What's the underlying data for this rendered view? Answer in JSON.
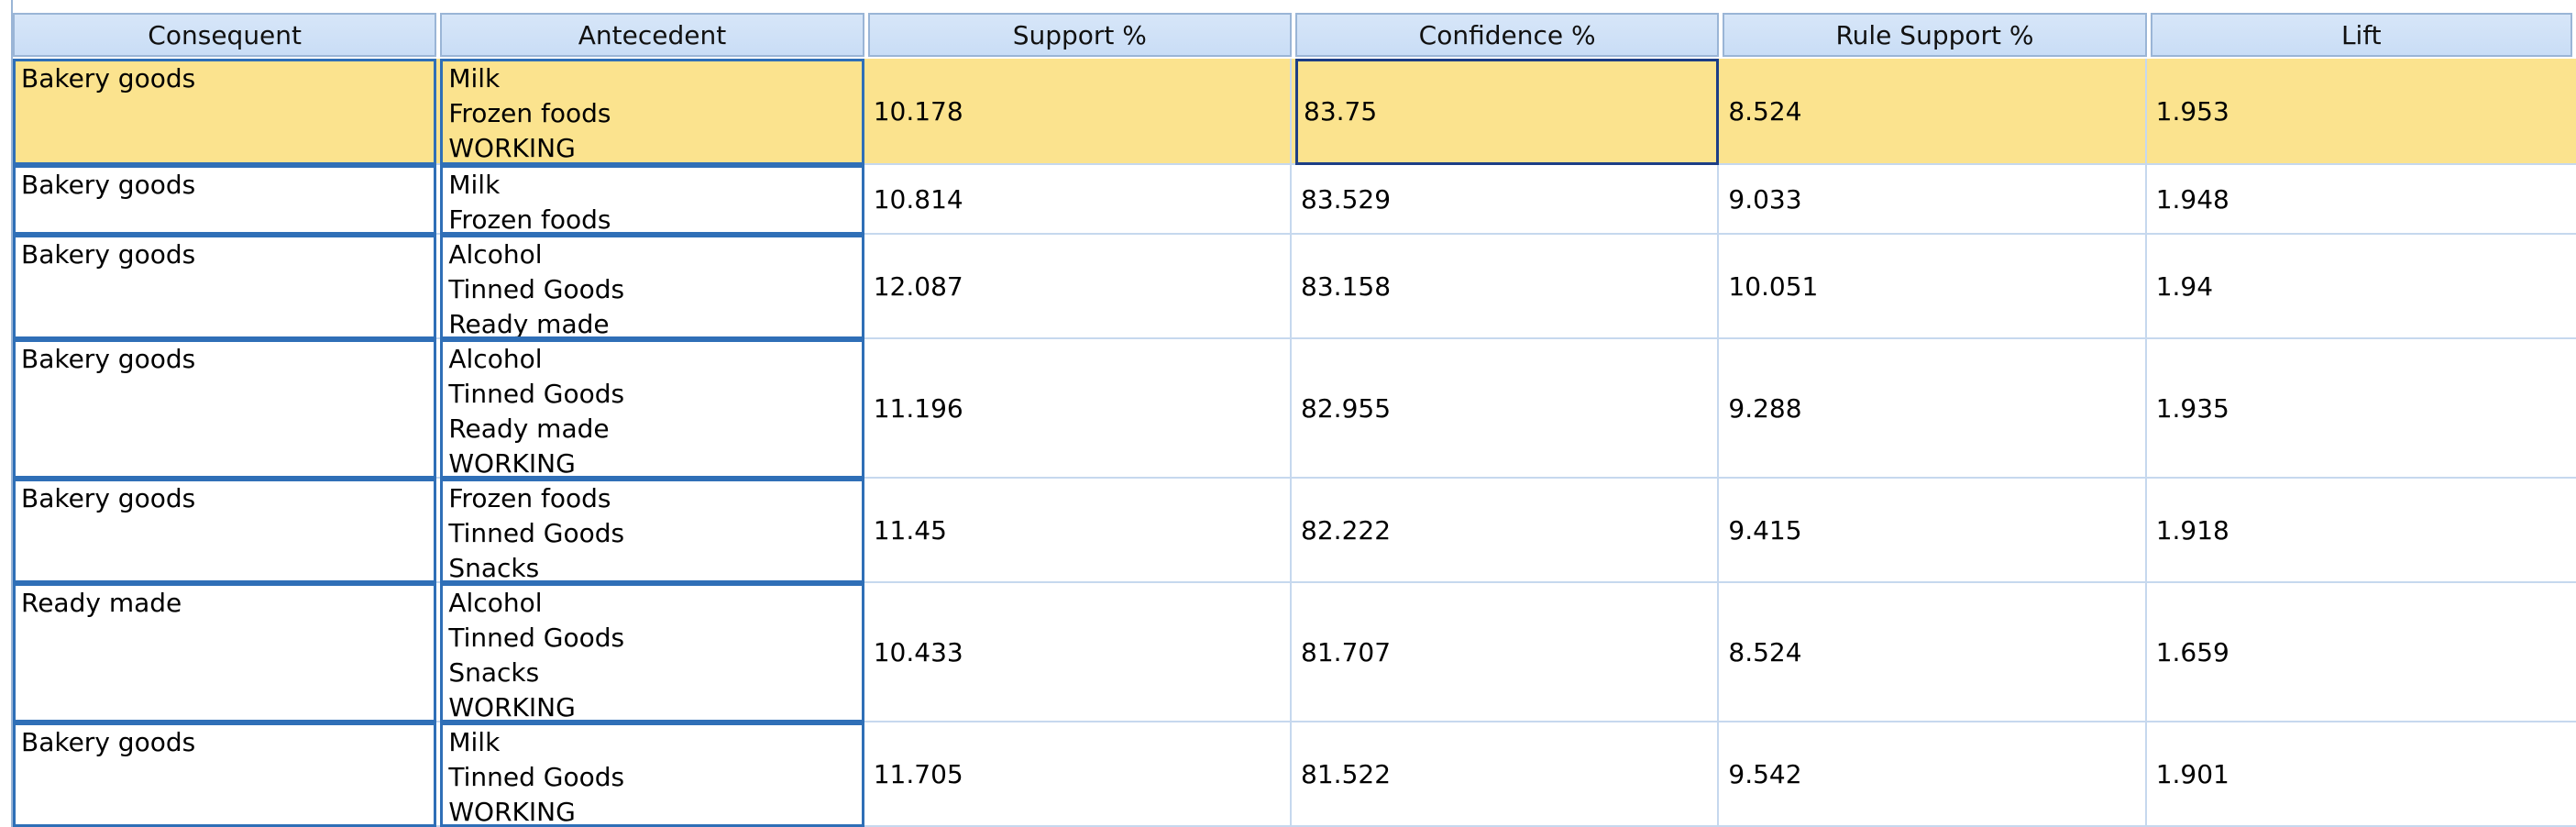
{
  "table": {
    "columns": [
      "Consequent",
      "Antecedent",
      "Support %",
      "Confidence %",
      "Rule Support %",
      "Lift"
    ],
    "rows": [
      {
        "consequent": "Bakery goods",
        "antecedent": [
          "Milk",
          "Frozen foods",
          "WORKING"
        ],
        "support": "10.178",
        "confidence": "83.75",
        "rule_support": "8.524",
        "lift": "1.953",
        "selected": true
      },
      {
        "consequent": "Bakery goods",
        "antecedent": [
          "Milk",
          "Frozen foods"
        ],
        "support": "10.814",
        "confidence": "83.529",
        "rule_support": "9.033",
        "lift": "1.948",
        "selected": false
      },
      {
        "consequent": "Bakery goods",
        "antecedent": [
          "Alcohol",
          "Tinned Goods",
          "Ready made"
        ],
        "support": "12.087",
        "confidence": "83.158",
        "rule_support": "10.051",
        "lift": "1.94",
        "selected": false
      },
      {
        "consequent": "Bakery goods",
        "antecedent": [
          "Alcohol",
          "Tinned Goods",
          "Ready made",
          "WORKING"
        ],
        "support": "11.196",
        "confidence": "82.955",
        "rule_support": "9.288",
        "lift": "1.935",
        "selected": false
      },
      {
        "consequent": "Bakery goods",
        "antecedent": [
          "Frozen foods",
          "Tinned Goods",
          "Snacks"
        ],
        "support": "11.45",
        "confidence": "82.222",
        "rule_support": "9.415",
        "lift": "1.918",
        "selected": false
      },
      {
        "consequent": "Ready made",
        "antecedent": [
          "Alcohol",
          "Tinned Goods",
          "Snacks",
          "WORKING"
        ],
        "support": "10.433",
        "confidence": "81.707",
        "rule_support": "8.524",
        "lift": "1.659",
        "selected": false
      },
      {
        "consequent": "Bakery goods",
        "antecedent": [
          "Milk",
          "Tinned Goods",
          "WORKING"
        ],
        "support": "11.705",
        "confidence": "81.522",
        "rule_support": "9.542",
        "lift": "1.901",
        "selected": false
      }
    ]
  },
  "colors": {
    "header_bg": "#c9ddf6",
    "grid_line": "#9ab5d6",
    "selected_row_bg": "#fbe38e",
    "text_cell_border": "#2f6fb7",
    "focus_border": "#1c3e86"
  }
}
